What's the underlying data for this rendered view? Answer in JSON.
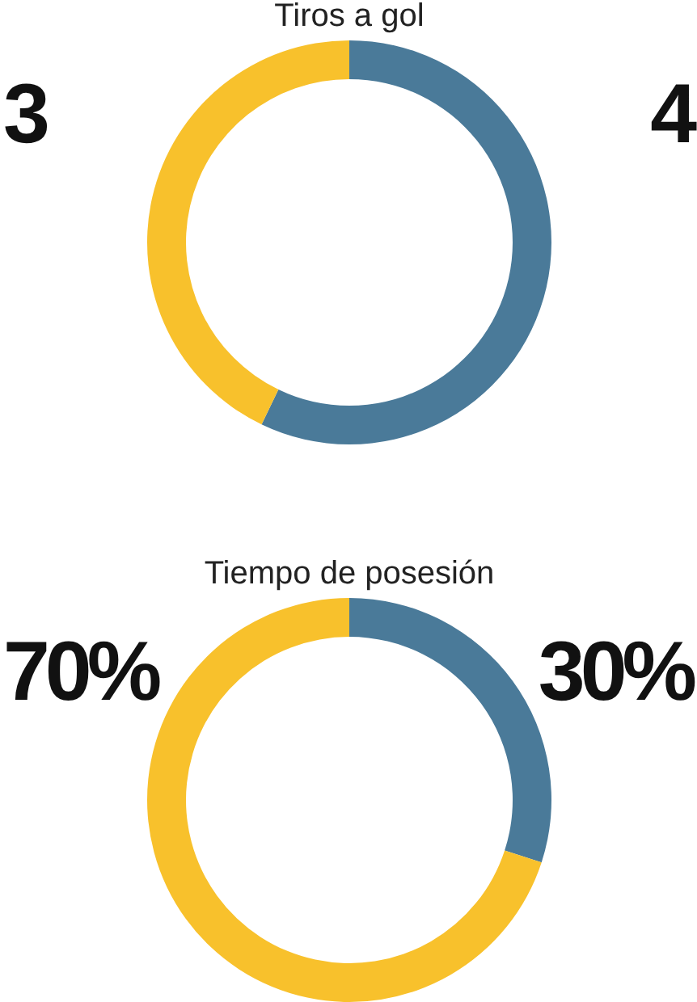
{
  "chart_data": [
    {
      "type": "donut",
      "title": "Tiros a gol",
      "categories": [
        null,
        null
      ],
      "values": [
        4,
        3
      ],
      "colors": [
        "#4a7a99",
        "#f8c12c"
      ],
      "value_labels": [
        "4",
        "3"
      ]
    },
    {
      "type": "donut",
      "title": "Tiempo de posesión",
      "categories": [
        null,
        null
      ],
      "values": [
        30,
        70
      ],
      "colors": [
        "#4a7a99",
        "#f8c12c"
      ],
      "value_labels": [
        "30%",
        "70%"
      ]
    }
  ]
}
